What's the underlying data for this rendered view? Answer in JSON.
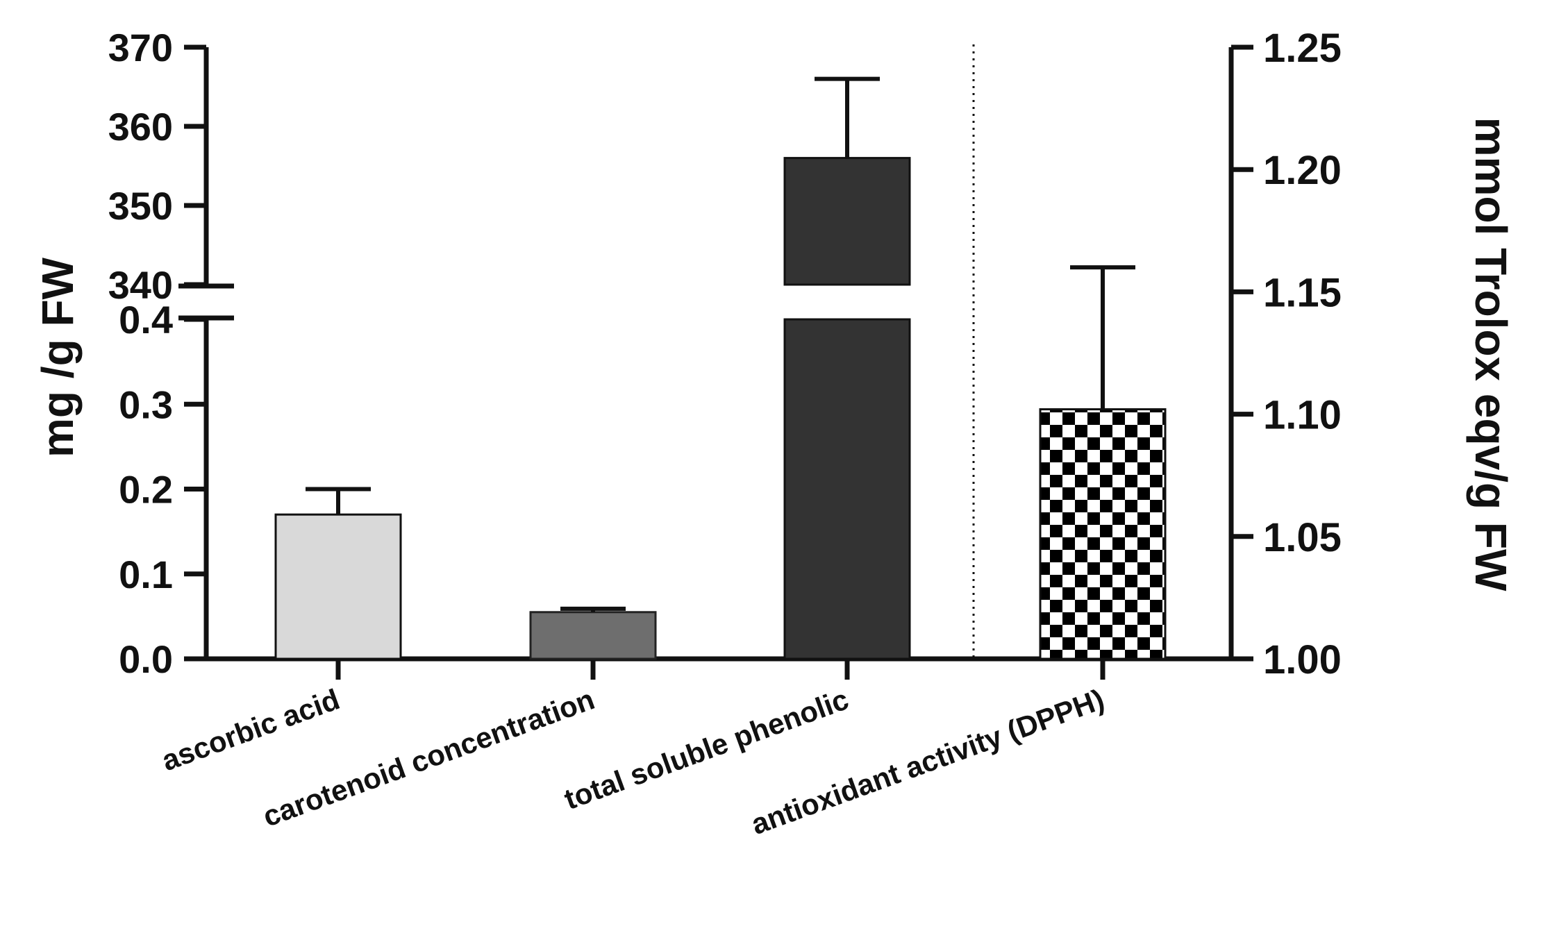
{
  "chart_data": {
    "type": "bar",
    "title": "",
    "categories": [
      "ascorbic acid",
      "carotenoid concentration",
      "total soluble phenolic",
      "antioxidant activity (DPPH)"
    ],
    "left_axis": {
      "label": "mg /g FW",
      "broken": true,
      "lower_range": [
        0,
        0.4
      ],
      "upper_range": [
        340,
        370
      ],
      "lower_ticks": [
        "0.0",
        "0.1",
        "0.2",
        "0.3",
        "0.4"
      ],
      "upper_ticks": [
        "340",
        "350",
        "360",
        "370"
      ]
    },
    "right_axis": {
      "label": "mmol Trolox eqv/g FW",
      "range": [
        1.0,
        1.25
      ],
      "ticks": [
        "1.00",
        "1.05",
        "1.10",
        "1.15",
        "1.20",
        "1.25"
      ]
    },
    "series": [
      {
        "category": "ascorbic acid",
        "axis": "left",
        "value": 0.17,
        "error": 0.03,
        "color": "#d9d9d9",
        "pattern": "solid"
      },
      {
        "category": "carotenoid concentration",
        "axis": "left",
        "value": 0.055,
        "error": 0.004,
        "color": "#6e6e6e",
        "pattern": "solid"
      },
      {
        "category": "total soluble phenolic",
        "axis": "left",
        "value": 356,
        "error": 10,
        "color": "#333333",
        "pattern": "solid"
      },
      {
        "category": "antioxidant activity (DPPH)",
        "axis": "right",
        "value": 1.102,
        "error": 0.058,
        "color": "#000000",
        "pattern": "checker"
      }
    ],
    "separator": "dotted line between total soluble phenolic and antioxidant activity (DPPH)",
    "grid": false,
    "legend": "none"
  }
}
